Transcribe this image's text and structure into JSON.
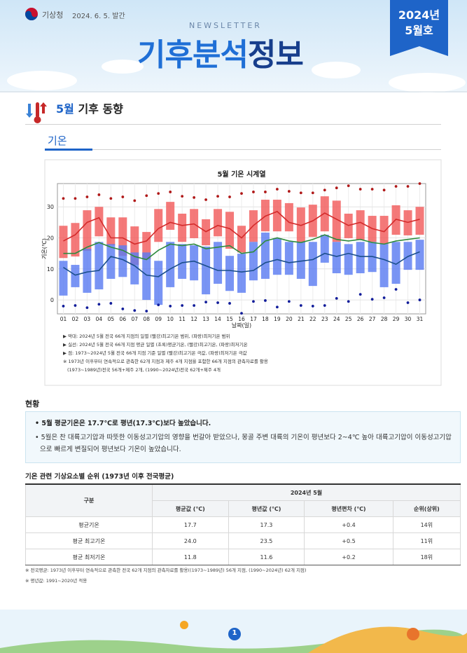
{
  "header": {
    "agency": "기상청",
    "date": "2024. 6. 5. 발간",
    "newsletter": "NEWSLETTER",
    "title_a": "기후분석",
    "title_b": "정보",
    "issue_year": "2024년",
    "issue_month": "5월호"
  },
  "section": {
    "month": "5월",
    "title": "기후 동향",
    "sub": "기온"
  },
  "chart_data": {
    "type": "combo",
    "title": "5월 기온 시계열",
    "ylabel": "기온(℃)",
    "xlabel": "날짜(일)",
    "categories": [
      "01",
      "02",
      "03",
      "04",
      "05",
      "06",
      "07",
      "08",
      "09",
      "10",
      "11",
      "12",
      "13",
      "14",
      "15",
      "16",
      "17",
      "18",
      "19",
      "20",
      "21",
      "22",
      "23",
      "24",
      "25",
      "26",
      "27",
      "28",
      "29",
      "30",
      "31"
    ],
    "ylim": [
      -4.5,
      37.5
    ],
    "yticks": [
      0,
      10,
      20,
      30
    ],
    "grid": true,
    "series": [
      {
        "type": "range_bar",
        "color": "#f25c5c",
        "high": [
          23.9,
          24.8,
          28.9,
          30,
          26.6,
          26.6,
          23.7,
          21.9,
          29.3,
          31.6,
          27.8,
          29.3,
          26,
          29.3,
          28.4,
          23.9,
          28.9,
          32.3,
          32.3,
          31.2,
          29.8,
          30.7,
          33.4,
          32,
          27.8,
          28.9,
          27.1,
          27.1,
          30.5,
          28.9,
          30
        ],
        "low": [
          13.5,
          14,
          15.8,
          20.5,
          17.6,
          14.2,
          11.3,
          13.1,
          18.7,
          22.6,
          18.7,
          19.9,
          17.6,
          20.5,
          16.5,
          15.3,
          18.7,
          22.1,
          22.1,
          22.1,
          18.7,
          20.3,
          22.1,
          18.7,
          19.9,
          19.4,
          18.7,
          18,
          21,
          20.8,
          21
        ]
      },
      {
        "type": "range_bar",
        "color": "#5c7cf2",
        "high": [
          12.6,
          11.3,
          16.5,
          18.7,
          18,
          17.6,
          15.3,
          15.3,
          12.6,
          18.7,
          18,
          17.6,
          17.2,
          18.7,
          14.2,
          14.9,
          18.7,
          21.7,
          19.9,
          18.7,
          18.7,
          18.7,
          21,
          18.7,
          18,
          18.7,
          18.7,
          18,
          18.7,
          18.7,
          19.4
        ],
        "low": [
          1.4,
          4.1,
          2.3,
          3.4,
          6.8,
          7.4,
          5,
          0,
          -1.6,
          4.1,
          6.8,
          6.3,
          1.8,
          5.2,
          2.9,
          2.3,
          6.3,
          6.8,
          8.1,
          8.1,
          6.8,
          4.5,
          12,
          8.6,
          8.1,
          8.6,
          9,
          4.1,
          5.2,
          9.7,
          9.7
        ]
      },
      {
        "type": "line",
        "color": "#d42a2a",
        "values": [
          19,
          21,
          25,
          26.5,
          20,
          20,
          18,
          19,
          23,
          25,
          24,
          24.5,
          22,
          24,
          23,
          20,
          24,
          27,
          28.5,
          25,
          24,
          25.5,
          28,
          26,
          24,
          25,
          23,
          22,
          26,
          25,
          26
        ]
      },
      {
        "type": "line",
        "color": "#2e8b3e",
        "values": [
          15,
          15,
          17,
          18.5,
          17,
          16,
          14,
          13,
          16,
          18,
          17.5,
          18,
          16.5,
          17,
          17.5,
          15,
          15.5,
          19,
          20,
          19,
          18.5,
          19.5,
          21,
          19.5,
          19,
          19.5,
          18.5,
          18,
          19,
          19.5,
          20
        ]
      },
      {
        "type": "line",
        "color": "#1b4f8c",
        "values": [
          10.5,
          8,
          9,
          9.5,
          14,
          13,
          11,
          8,
          7.5,
          10,
          12,
          12.5,
          11,
          9.5,
          9.5,
          9,
          9.5,
          12,
          13,
          12,
          12.5,
          13,
          15,
          14,
          15,
          14,
          14,
          13,
          11.5,
          14,
          15.5
        ]
      },
      {
        "type": "dot",
        "color": "#b01818",
        "values": [
          32.7,
          32.7,
          33.2,
          33.9,
          32.7,
          33.2,
          32,
          33.6,
          34.3,
          34.8,
          33.4,
          33,
          32.3,
          33.4,
          33.2,
          34.3,
          34.8,
          34.8,
          35.7,
          35,
          34.5,
          34.5,
          35.4,
          36.1,
          36.8,
          35.7,
          35.7,
          35.4,
          36.6,
          36.6,
          37.5
        ]
      },
      {
        "type": "dot",
        "color": "#101c9a",
        "values": [
          -2,
          -1.8,
          -2.5,
          -1.4,
          -1.1,
          -2.9,
          -3.4,
          -3.6,
          -1.6,
          -2,
          -1.8,
          -1.8,
          -0.7,
          -0.9,
          -1.1,
          -4.3,
          -0.5,
          -0.2,
          -2.3,
          -0.5,
          -1.8,
          -2,
          -1.8,
          0.5,
          -0.5,
          1.8,
          0.2,
          0.7,
          3.4,
          -0.9,
          0
        ]
      }
    ]
  },
  "chart_notes": [
    "▶ 막대: 2024년 5월 전국 66개 지점의 일별 (빨강)최고기온 범위, (파랑)최저기온 범위",
    "▶ 실선: 2024년 5월 전국 66개 지점 평균 일별 (초록)평균기온, (빨강)최고기온, (파랑)최저기온",
    "▶ 점: 1973~2024년 5월 전국 66개 지점 기준 일별 (빨강)최고기온 극값, (파랑)최저기온 극값",
    "※ 1973년 이후부터 연속적으로 관측한 62개 지점과 제주 4개 지점을 포함한 66개 지점의 관측자료를 활용",
    "(1973~1989년)전국 56개+제주 2개, (1990~2024년)전국 62개+제주 4개"
  ],
  "status": {
    "title": "현황",
    "bullets": [
      "5월 평균기온은 17.7℃로 평년(17.3℃)보다 높았습니다.",
      "5월은 찬 대륙고기압과 따뜻한 이동성고기압의 영향을 번갈아 받았으나, 몽골 주변 대륙의 기온이 평년보다 2~4℃ 높아 대륙고기압이 이동성고기압으로 빠르게 변질되어 평년보다 기온이 높았습니다."
    ]
  },
  "table": {
    "title": "기온 관련 기상요소별 순위 (1973년 이후 전국평균)",
    "header": "구분",
    "period": "2024년 5월",
    "columns": [
      "평균값 (℃)",
      "평년값 (℃)",
      "평년편차 (℃)",
      "순위(상위)"
    ],
    "rows": [
      [
        "평균기온",
        "17.7",
        "17.3",
        "+0.4",
        "14위"
      ],
      [
        "평균 최고기온",
        "24.0",
        "23.5",
        "+0.5",
        "11위"
      ],
      [
        "평균 최저기온",
        "11.8",
        "11.6",
        "+0.2",
        "18위"
      ]
    ]
  },
  "footnotes": [
    "※ 전국평균: 1973년 이후부터 연속적으로 관측한 전국 62개 지점의 관측자료를 활용((1973~1989년) 56개 지점, (1990~2024년) 62개 지점)",
    "※ 평년값: 1991~2020년 적용"
  ],
  "page": "1"
}
